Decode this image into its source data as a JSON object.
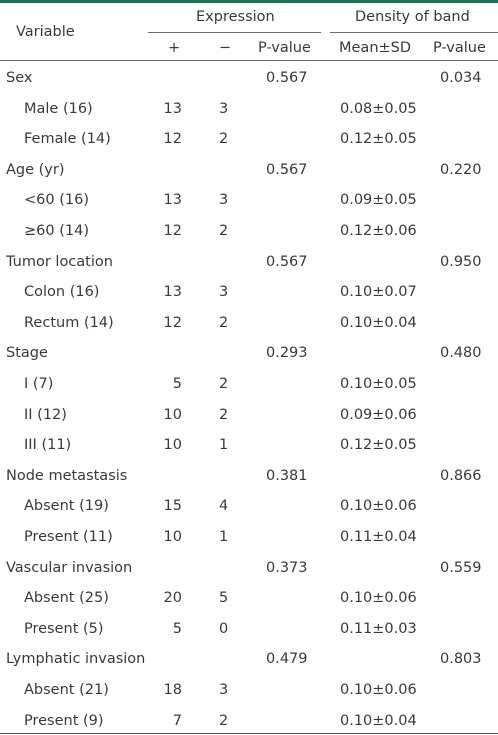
{
  "header": {
    "variable": "Variable",
    "expression": "Expression",
    "density": "Density of band",
    "plus": "+",
    "minus": "−",
    "pvalue": "P-value",
    "meansd": "Mean±SD",
    "pvalue2": "P-value"
  },
  "rows": [
    {
      "label": "Sex",
      "p1": "0.567",
      "p2": "0.034"
    },
    {
      "label": "Male (16)",
      "plus": "13",
      "minus": "3",
      "mean": "0.08±0.05"
    },
    {
      "label": "Female (14)",
      "plus": "12",
      "minus": "2",
      "mean": "0.12±0.05"
    },
    {
      "label": "Age (yr)",
      "p1": "0.567",
      "p2": "0.220"
    },
    {
      "label": "<60 (16)",
      "plus": "13",
      "minus": "3",
      "mean": "0.09±0.05"
    },
    {
      "label": "≥60 (14)",
      "plus": "12",
      "minus": "2",
      "mean": "0.12±0.06"
    },
    {
      "label": "Tumor location",
      "p1": "0.567",
      "p2": "0.950"
    },
    {
      "label": "Colon (16)",
      "plus": "13",
      "minus": "3",
      "mean": "0.10±0.07"
    },
    {
      "label": " Rectum (14)",
      "plus": "12",
      "minus": "2",
      "mean": "0.10±0.04"
    },
    {
      "label": "Stage",
      "p1": "0.293",
      "p2": "0.480"
    },
    {
      "label": "I (7)",
      "plus": "5",
      "minus": "2",
      "mean": "0.10±0.05"
    },
    {
      "label": "II (12)",
      "plus": "10",
      "minus": "2",
      "mean": "0.09±0.06"
    },
    {
      "label": "III (11)",
      "plus": "10",
      "minus": "1",
      "mean": "0.12±0.05"
    },
    {
      "label": "Node metastasis",
      "p1": "0.381",
      "p2": "0.866"
    },
    {
      "label": "Absent (19)",
      "plus": "15",
      "minus": "4",
      "mean": "0.10±0.06"
    },
    {
      "label": "Present (11)",
      "plus": "10",
      "minus": "1",
      "mean": "0.11±0.04"
    },
    {
      "label": "Vascular invasion",
      "p1": "0.373",
      "p2": "0.559"
    },
    {
      "label": "Absent (25)",
      "plus": "20",
      "minus": "5",
      "mean": "0.10±0.06"
    },
    {
      "label": "Present (5)",
      "plus": "5",
      "minus": "0",
      "mean": "0.11±0.03"
    },
    {
      "label": "Lymphatic invasion",
      "p1": "0.479",
      "p2": "0.803"
    },
    {
      "label": "Absent (21)",
      "plus": "18",
      "minus": "3",
      "mean": "0.10±0.06"
    },
    {
      "label": "Present (9)",
      "plus": "7",
      "minus": "2",
      "mean": "0.10±0.04"
    }
  ]
}
